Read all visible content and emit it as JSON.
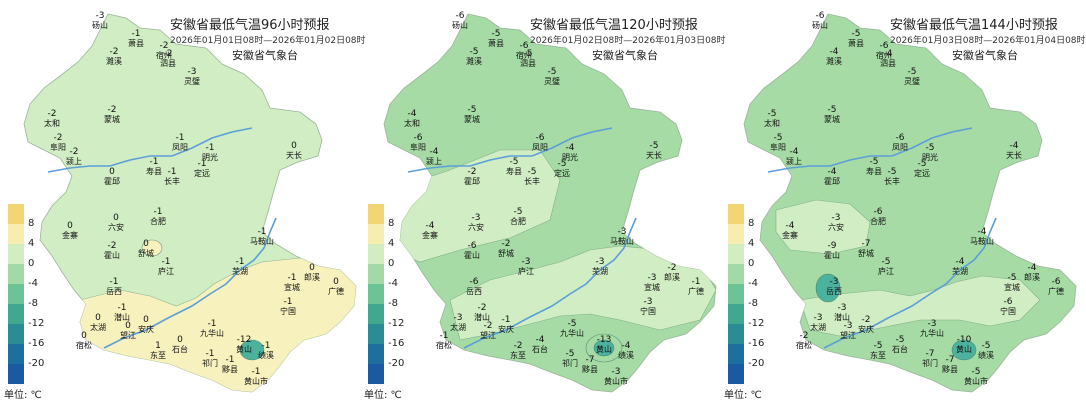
{
  "unit_label": "单位: ℃",
  "legend_ticks": [
    "8",
    "4",
    "0",
    "-4",
    "-8",
    "-12",
    "-16",
    "-20"
  ],
  "legend_colors": [
    "#f2d676",
    "#f5eeb0",
    "#d3ecc1",
    "#a3d9a6",
    "#6cc396",
    "#3fa88e",
    "#2a8c94",
    "#1d6f9d",
    "#1b5aa0"
  ],
  "colors": {
    "land_main": "#a6dba5",
    "land_light": "#d1edc3",
    "warm": "#f7f1be",
    "cold": "#4ab29d",
    "river": "#5b9fd9"
  },
  "panels": [
    {
      "title": "安徽省最低气温96小时预报",
      "subtitle": "2026年01月01日08时—2026年01月02日08时",
      "agency": "安徽省气象台",
      "stations": [
        {
          "v": "-3",
          "n": "砀山"
        },
        {
          "v": "-1",
          "n": "萧县"
        },
        {
          "v": "-2",
          "n": "濉溪"
        },
        {
          "v": "-2",
          "n": "宿州"
        },
        {
          "v": "-3",
          "n": "灵璧"
        },
        {
          "v": "-2",
          "n": "泗县"
        },
        {
          "v": "-2",
          "n": "蒙城"
        },
        {
          "v": "-2",
          "n": "太和"
        },
        {
          "v": "-2",
          "n": "阜阳"
        },
        {
          "v": "-2",
          "n": "颍上"
        },
        {
          "v": "-1",
          "n": "凤阳"
        },
        {
          "v": "-1",
          "n": "明光"
        },
        {
          "v": "0",
          "n": "天长"
        },
        {
          "v": "-1",
          "n": "寿县"
        },
        {
          "v": "-1",
          "n": "长丰"
        },
        {
          "v": "-1",
          "n": "定远"
        },
        {
          "v": "0",
          "n": "霍邱"
        },
        {
          "v": "0",
          "n": "金寨"
        },
        {
          "v": "0",
          "n": "六安"
        },
        {
          "v": "-1",
          "n": "合肥"
        },
        {
          "v": "0",
          "n": "舒城"
        },
        {
          "v": "-1",
          "n": "庐江"
        },
        {
          "v": "-2",
          "n": "霍山"
        },
        {
          "v": "-1",
          "n": "岳西"
        },
        {
          "v": "-1",
          "n": "潜山"
        },
        {
          "v": "0",
          "n": "太湖"
        },
        {
          "v": "0",
          "n": "宿松"
        },
        {
          "v": "0",
          "n": "望江"
        },
        {
          "v": "0",
          "n": "安庆"
        },
        {
          "v": "1",
          "n": "东至"
        },
        {
          "v": "0",
          "n": "石台"
        },
        {
          "v": "-1",
          "n": "九华山"
        },
        {
          "v": "-1",
          "n": "祁门"
        },
        {
          "v": "-1",
          "n": "黟县"
        },
        {
          "v": "-12",
          "n": "黄山"
        },
        {
          "v": "-1",
          "n": "黄山市"
        },
        {
          "v": "-1",
          "n": "绩溪"
        },
        {
          "v": "-1",
          "n": "宁国"
        },
        {
          "v": "0",
          "n": "广德"
        },
        {
          "v": "-1",
          "n": "宣城"
        },
        {
          "v": "-1",
          "n": "芜湖"
        },
        {
          "v": "-1",
          "n": "马鞍山"
        },
        {
          "v": "0",
          "n": "郎溪"
        }
      ]
    },
    {
      "title": "安徽省最低气温120小时预报",
      "subtitle": "2026年01月02日08时—2026年01月03日08时",
      "agency": "安徽省气象台",
      "stations": [
        {
          "v": "-6",
          "n": "砀山"
        },
        {
          "v": "-5",
          "n": "萧县"
        },
        {
          "v": "-5",
          "n": "濉溪"
        },
        {
          "v": "-6",
          "n": "宿州"
        },
        {
          "v": "-5",
          "n": "灵璧"
        },
        {
          "v": "-5",
          "n": "泗县"
        },
        {
          "v": "-5",
          "n": "蒙城"
        },
        {
          "v": "-4",
          "n": "太和"
        },
        {
          "v": "-6",
          "n": "阜阳"
        },
        {
          "v": "-4",
          "n": "颍上"
        },
        {
          "v": "-6",
          "n": "凤阳"
        },
        {
          "v": "-4",
          "n": "明光"
        },
        {
          "v": "-5",
          "n": "天长"
        },
        {
          "v": "-5",
          "n": "寿县"
        },
        {
          "v": "-5",
          "n": "长丰"
        },
        {
          "v": "-5",
          "n": "定远"
        },
        {
          "v": "-2",
          "n": "霍邱"
        },
        {
          "v": "-4",
          "n": "金寨"
        },
        {
          "v": "-3",
          "n": "六安"
        },
        {
          "v": "-5",
          "n": "合肥"
        },
        {
          "v": "-2",
          "n": "舒城"
        },
        {
          "v": "-3",
          "n": "庐江"
        },
        {
          "v": "-6",
          "n": "霍山"
        },
        {
          "v": "-6",
          "n": "岳西"
        },
        {
          "v": "-2",
          "n": "潜山"
        },
        {
          "v": "-3",
          "n": "太湖"
        },
        {
          "v": "-1",
          "n": "宿松"
        },
        {
          "v": "-2",
          "n": "望江"
        },
        {
          "v": "-1",
          "n": "安庆"
        },
        {
          "v": "-2",
          "n": "东至"
        },
        {
          "v": "-4",
          "n": "石台"
        },
        {
          "v": "-5",
          "n": "九华山"
        },
        {
          "v": "-5",
          "n": "祁门"
        },
        {
          "v": "-7",
          "n": "黟县"
        },
        {
          "v": "-13",
          "n": "黄山"
        },
        {
          "v": "-3",
          "n": "黄山市"
        },
        {
          "v": "-4",
          "n": "绩溪"
        },
        {
          "v": "-3",
          "n": "宁国"
        },
        {
          "v": "-1",
          "n": "广德"
        },
        {
          "v": "-3",
          "n": "宣城"
        },
        {
          "v": "-3",
          "n": "芜湖"
        },
        {
          "v": "-3",
          "n": "马鞍山"
        },
        {
          "v": "-2",
          "n": "郎溪"
        }
      ]
    },
    {
      "title": "安徽省最低气温144小时预报",
      "subtitle": "2026年01月03日08时—2026年01月04日08时",
      "agency": "安徽省气象台",
      "stations": [
        {
          "v": "-6",
          "n": "砀山"
        },
        {
          "v": "-5",
          "n": "萧县"
        },
        {
          "v": "-4",
          "n": "濉溪"
        },
        {
          "v": "-6",
          "n": "宿州"
        },
        {
          "v": "-5",
          "n": "灵璧"
        },
        {
          "v": "-4",
          "n": "泗县"
        },
        {
          "v": "-5",
          "n": "蒙城"
        },
        {
          "v": "-5",
          "n": "太和"
        },
        {
          "v": "-5",
          "n": "阜阳"
        },
        {
          "v": "-4",
          "n": "颍上"
        },
        {
          "v": "-6",
          "n": "凤阳"
        },
        {
          "v": "-5",
          "n": "明光"
        },
        {
          "v": "-4",
          "n": "天长"
        },
        {
          "v": "-5",
          "n": "寿县"
        },
        {
          "v": "-5",
          "n": "长丰"
        },
        {
          "v": "-5",
          "n": "定远"
        },
        {
          "v": "-4",
          "n": "霍邱"
        },
        {
          "v": "-4",
          "n": "金寨"
        },
        {
          "v": "-3",
          "n": "六安"
        },
        {
          "v": "-6",
          "n": "合肥"
        },
        {
          "v": "-7",
          "n": "舒城"
        },
        {
          "v": "-5",
          "n": "庐江"
        },
        {
          "v": "-9",
          "n": "霍山"
        },
        {
          "v": "-3",
          "n": "岳西"
        },
        {
          "v": "-3",
          "n": "潜山"
        },
        {
          "v": "-3",
          "n": "太湖"
        },
        {
          "v": "-2",
          "n": "宿松"
        },
        {
          "v": "-3",
          "n": "望江"
        },
        {
          "v": "-2",
          "n": "安庆"
        },
        {
          "v": "-5",
          "n": "东至"
        },
        {
          "v": "-5",
          "n": "石台"
        },
        {
          "v": "-3",
          "n": "九华山"
        },
        {
          "v": "-7",
          "n": "祁门"
        },
        {
          "v": "-7",
          "n": "黟县"
        },
        {
          "v": "-10",
          "n": "黄山"
        },
        {
          "v": "-5",
          "n": "黄山市"
        },
        {
          "v": "-5",
          "n": "绩溪"
        },
        {
          "v": "-6",
          "n": "宁国"
        },
        {
          "v": "-6",
          "n": "广德"
        },
        {
          "v": "-5",
          "n": "宣城"
        },
        {
          "v": "-4",
          "n": "芜湖"
        },
        {
          "v": "-4",
          "n": "马鞍山"
        },
        {
          "v": "-4",
          "n": "郎溪"
        }
      ]
    }
  ]
}
